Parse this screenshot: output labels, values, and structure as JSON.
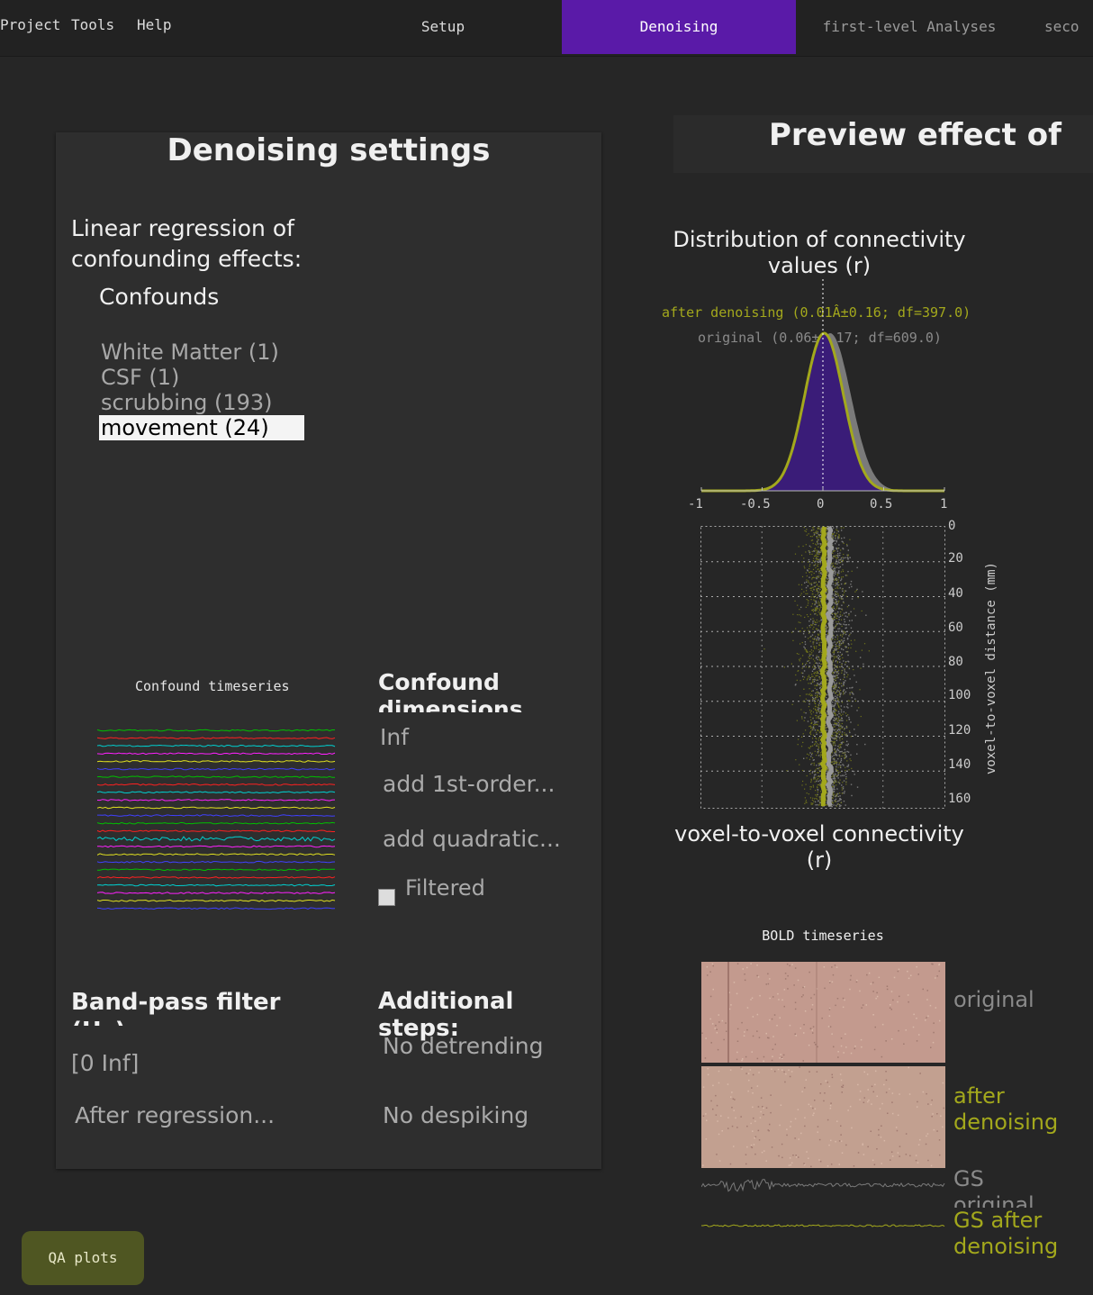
{
  "menu": {
    "project": "Project",
    "tools": "Tools",
    "help": "Help"
  },
  "tabs": {
    "setup": "Setup",
    "denoising": "Denoising",
    "first_level": "first-level Analyses",
    "second": "seco"
  },
  "left": {
    "title": "Denoising settings",
    "regression_heading": "Linear regression of confounding effects:",
    "confounds_heading": "Confounds",
    "confounds": [
      "White Matter (1)",
      "CSF (1)",
      "scrubbing (193)",
      "movement (24)"
    ],
    "selected_confound": "movement (24)",
    "timeseries_label": "Confound timeseries",
    "dimensions_heading": "Confound dimensions",
    "dimensions_value": "Inf",
    "first_order": "add 1st-order...",
    "quadratic": "add quadratic...",
    "filtered_label": "Filtered",
    "bandpass_heading": "Band-pass filter (Hz):",
    "bandpass_value": "[0 Inf]",
    "bandpass_mode": "After regression...",
    "additional_heading": "Additional steps:",
    "detrending": "No detrending",
    "despiking": "No despiking"
  },
  "right": {
    "title": "Preview effect of",
    "dist_title": "Distribution of connectivity values (r)",
    "legend_after": "after denoising (0.01Â±0.16; df=397.0)",
    "legend_original": "original (0.06±0.17; df=609.0)",
    "xticks": [
      "-1",
      "-0.5",
      "0",
      "0.5",
      "1"
    ],
    "yticks": [
      "0",
      "20",
      "40",
      "60",
      "80",
      "100",
      "120",
      "140",
      "160"
    ],
    "y_axis_label": "voxel-to-voxel distance (mm)",
    "x_axis_label": "voxel-to-voxel connectivity (r)",
    "bold_title": "BOLD timeseries",
    "label_original": "original",
    "label_after": "after denoising",
    "label_gs_original": "GS original",
    "label_gs_after": "GS after denoising"
  },
  "qa_button": "QA plots",
  "colors": {
    "accent": "#5a1aa8",
    "after": "#a3a81c",
    "original": "#7a7a7a",
    "bold_bg": "#c39a8e",
    "hist_fill": "#3a1c78"
  },
  "chart_data": {
    "type": "area",
    "title": "Distribution of connectivity values (r)",
    "xlabel": "voxel-to-voxel connectivity (r)",
    "ylabel": "voxel-to-voxel distance (mm)",
    "xlim": [
      -1,
      1
    ],
    "ylim": [
      0,
      160
    ],
    "series": [
      {
        "name": "after denoising",
        "mean": 0.01,
        "std": 0.16,
        "df": 397.0
      },
      {
        "name": "original",
        "mean": 0.06,
        "std": 0.17,
        "df": 609.0
      }
    ]
  }
}
